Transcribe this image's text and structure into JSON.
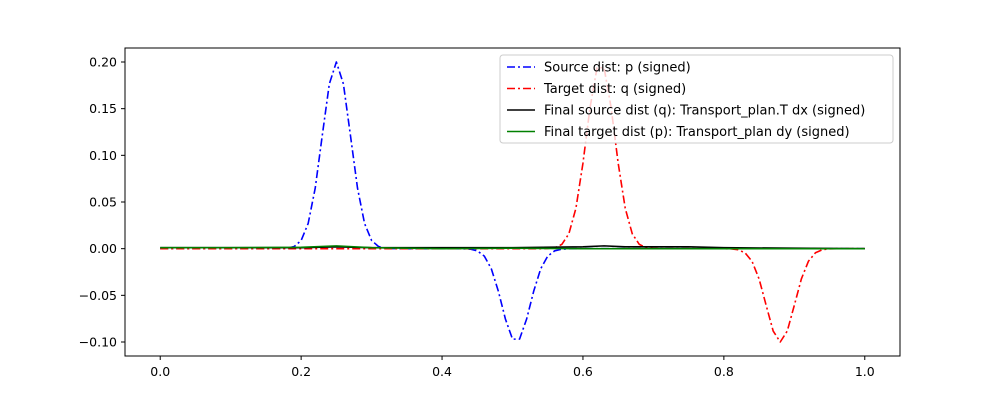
{
  "chart_data": {
    "type": "line",
    "title": "",
    "xlabel": "",
    "ylabel": "",
    "xlim": [
      -0.05,
      1.05
    ],
    "ylim": [
      -0.115,
      0.215
    ],
    "x_ticks": [
      0.0,
      0.2,
      0.4,
      0.6,
      0.8,
      1.0
    ],
    "x_tick_labels": [
      "0.0",
      "0.2",
      "0.4",
      "0.6",
      "0.8",
      "1.0"
    ],
    "y_ticks": [
      -0.1,
      -0.05,
      0.0,
      0.05,
      0.1,
      0.15,
      0.2
    ],
    "y_tick_labels": [
      "−0.10",
      "−0.05",
      "0.00",
      "0.05",
      "0.10",
      "0.15",
      "0.20"
    ],
    "grid": false,
    "legend_position": "top-right",
    "series": [
      {
        "name": "Source dist: p (signed)",
        "color": "#0000ff",
        "style": "dashdot",
        "gaussians": [
          {
            "center": 0.25,
            "amplitude": 0.2,
            "sigma": 0.02
          },
          {
            "center": 0.505,
            "amplitude": -0.1,
            "sigma": 0.02
          }
        ]
      },
      {
        "name": "Target dist: q (signed)",
        "color": "#ff0000",
        "style": "dashdot",
        "gaussians": [
          {
            "center": 0.625,
            "amplitude": 0.2,
            "sigma": 0.02
          },
          {
            "center": 0.88,
            "amplitude": -0.1,
            "sigma": 0.02
          }
        ]
      },
      {
        "name": "Final source dist (q): Transport_plan.T dx (signed)",
        "color": "#000000",
        "style": "solid",
        "x": [
          0.0,
          0.1,
          0.2,
          0.25,
          0.3,
          0.4,
          0.5,
          0.6,
          0.63,
          0.66,
          0.75,
          0.8,
          0.9,
          1.0
        ],
        "y": [
          0.001,
          0.001,
          0.001,
          0.002,
          0.001,
          0.001,
          0.001,
          0.002,
          0.003,
          0.002,
          0.002,
          0.001,
          0.0005,
          0.0
        ]
      },
      {
        "name": "Final target dist (p): Transport_plan dy (signed)",
        "color": "#008000",
        "style": "solid",
        "x": [
          0.0,
          0.1,
          0.2,
          0.25,
          0.3,
          0.4,
          0.5,
          0.6,
          0.63,
          0.7,
          0.8,
          0.9,
          1.0
        ],
        "y": [
          0.001,
          0.001,
          0.0015,
          0.003,
          0.001,
          0.0,
          0.0005,
          0.0,
          0.0,
          0.0,
          0.0,
          0.0,
          0.0
        ]
      }
    ]
  }
}
